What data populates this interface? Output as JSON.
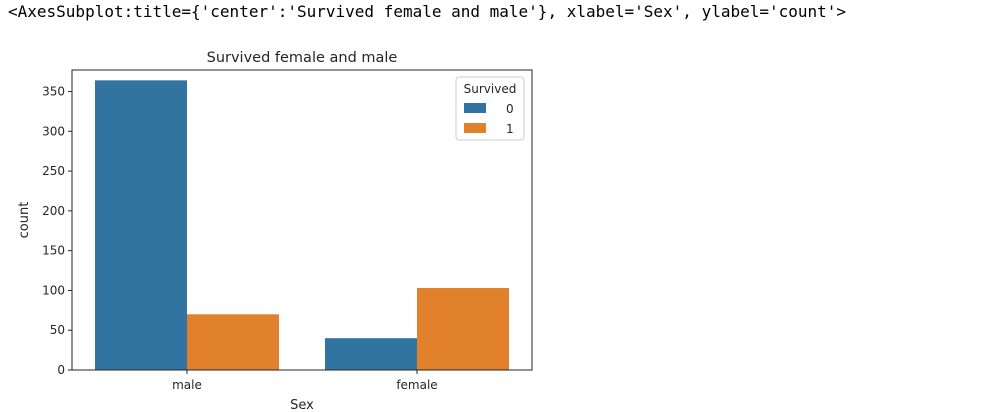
{
  "output": {
    "repr": "<AxesSubplot:title={'center':'Survived female and male'}, xlabel='Sex', ylabel='count'>"
  },
  "chart_data": {
    "type": "bar",
    "title": "Survived female and male",
    "xlabel": "Sex",
    "ylabel": "count",
    "categories": [
      "male",
      "female"
    ],
    "series": [
      {
        "name": "0",
        "values": [
          364,
          40
        ],
        "color": "#3274a1"
      },
      {
        "name": "1",
        "values": [
          70,
          103
        ],
        "color": "#e1812c"
      }
    ],
    "ylim": [
      0,
      377
    ],
    "yticks": [
      0,
      50,
      100,
      150,
      200,
      250,
      300,
      350
    ],
    "legend": {
      "title": "Survived",
      "placement": "top-right"
    },
    "grid": false
  }
}
